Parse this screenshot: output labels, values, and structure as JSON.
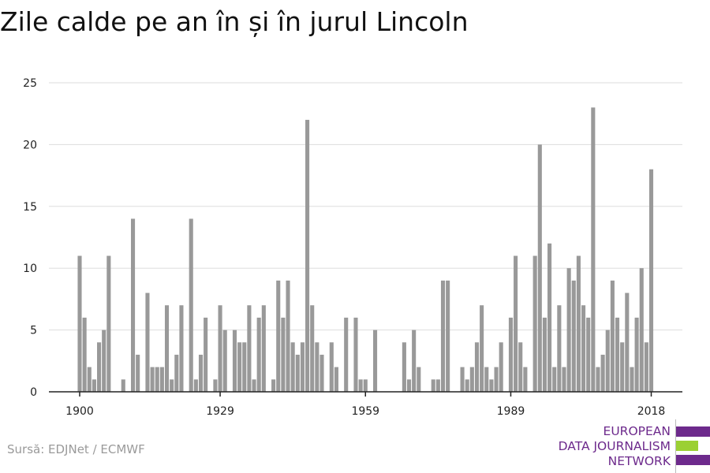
{
  "title": "Zile calde pe an în și în jurul Lincoln",
  "source": "Sursă: EDJNet / ECMWF",
  "logo": {
    "lines": [
      "EUROPEAN",
      "DATA JOURNALISM",
      "NETWORK"
    ],
    "colors": {
      "purple": "#6d2a8c",
      "green": "#9bd033"
    }
  },
  "chart_data": {
    "type": "bar",
    "title": "Zile calde pe an în și în jurul Lincoln",
    "xlabel": "",
    "ylabel": "",
    "bar_color": "#999999",
    "ylim": [
      0,
      25
    ],
    "yticks": [
      0,
      5,
      10,
      15,
      20,
      25
    ],
    "xticks": [
      1900,
      1929,
      1959,
      1989,
      2018
    ],
    "grid": true,
    "x": [
      1900,
      1901,
      1902,
      1903,
      1904,
      1905,
      1906,
      1907,
      1908,
      1909,
      1910,
      1911,
      1912,
      1913,
      1914,
      1915,
      1916,
      1917,
      1918,
      1919,
      1920,
      1921,
      1922,
      1923,
      1924,
      1925,
      1926,
      1927,
      1928,
      1929,
      1930,
      1931,
      1932,
      1933,
      1934,
      1935,
      1936,
      1937,
      1938,
      1939,
      1940,
      1941,
      1942,
      1943,
      1944,
      1945,
      1946,
      1947,
      1948,
      1949,
      1950,
      1951,
      1952,
      1953,
      1954,
      1955,
      1956,
      1957,
      1958,
      1959,
      1960,
      1961,
      1962,
      1963,
      1964,
      1965,
      1966,
      1967,
      1968,
      1969,
      1970,
      1971,
      1972,
      1973,
      1974,
      1975,
      1976,
      1977,
      1978,
      1979,
      1980,
      1981,
      1982,
      1983,
      1984,
      1985,
      1986,
      1987,
      1988,
      1989,
      1990,
      1991,
      1992,
      1993,
      1994,
      1995,
      1996,
      1997,
      1998,
      1999,
      2000,
      2001,
      2002,
      2003,
      2004,
      2005,
      2006,
      2007,
      2008,
      2009,
      2010,
      2011,
      2012,
      2013,
      2014,
      2015,
      2016,
      2017,
      2018
    ],
    "values": [
      11,
      6,
      2,
      1,
      4,
      5,
      11,
      0,
      0,
      1,
      0,
      14,
      3,
      0,
      8,
      2,
      2,
      2,
      7,
      1,
      3,
      7,
      0,
      14,
      1,
      3,
      6,
      0,
      1,
      7,
      5,
      0,
      5,
      4,
      4,
      7,
      1,
      6,
      7,
      0,
      1,
      9,
      6,
      9,
      4,
      3,
      4,
      22,
      7,
      4,
      3,
      0,
      4,
      2,
      0,
      6,
      0,
      6,
      1,
      1,
      0,
      5,
      0,
      0,
      0,
      0,
      0,
      4,
      1,
      5,
      2,
      0,
      0,
      1,
      1,
      9,
      9,
      0,
      0,
      2,
      1,
      2,
      4,
      7,
      2,
      1,
      2,
      4,
      0,
      6,
      11,
      4,
      2,
      0,
      11,
      20,
      6,
      12,
      2,
      7,
      2,
      10,
      9,
      11,
      7,
      6,
      23,
      2,
      3,
      5,
      9,
      6,
      4,
      8,
      2,
      6,
      10,
      4,
      18
    ]
  }
}
